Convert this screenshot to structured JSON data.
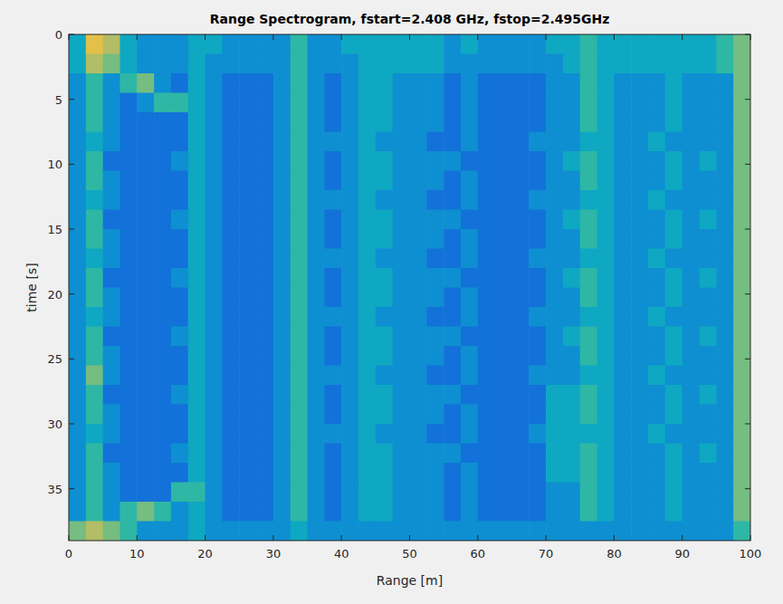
{
  "chart_data": {
    "type": "heatmap",
    "title": "Range Spectrogram, fstart=2.408 GHz, fstop=2.495GHz",
    "x_label": "Range [m]",
    "y_label": "time [s]",
    "xlim": [
      0,
      100
    ],
    "ylim": [
      0,
      39
    ],
    "xticks": [
      0,
      10,
      20,
      30,
      40,
      50,
      60,
      70,
      80,
      90,
      100
    ],
    "yticks": [
      0,
      5,
      10,
      15,
      20,
      25,
      30,
      35
    ],
    "zlim": [
      0,
      10
    ],
    "x_edges": [
      0,
      2.5,
      5,
      7.5,
      10,
      12.5,
      15,
      17.5,
      20,
      22.5,
      25,
      27.5,
      30,
      32.5,
      35,
      37.5,
      40,
      42.5,
      45,
      47.5,
      50,
      52.5,
      55,
      57.5,
      60,
      62.5,
      65,
      67.5,
      70,
      72.5,
      75,
      77.5,
      80,
      82.5,
      85,
      87.5,
      90,
      92.5,
      95,
      97.5,
      100
    ],
    "y_edges": [
      0,
      1.5,
      3,
      4.5,
      6,
      7.5,
      9,
      10.5,
      12,
      13.5,
      15,
      16.5,
      18,
      19.5,
      21,
      22.5,
      24,
      25.5,
      27,
      28.5,
      30,
      31.5,
      33,
      34.5,
      36,
      37.5,
      39
    ],
    "cells": [
      [
        4,
        8,
        7,
        4,
        3,
        3,
        3,
        4,
        4,
        3,
        3,
        3,
        3,
        5,
        3,
        3,
        4,
        4,
        4,
        4,
        4,
        4,
        3,
        4,
        3,
        3,
        3,
        3,
        4,
        4,
        5,
        4,
        4,
        4,
        4,
        4,
        4,
        4,
        5,
        6
      ],
      [
        4,
        7,
        6,
        4,
        3,
        3,
        3,
        4,
        3,
        3,
        3,
        3,
        3,
        5,
        3,
        3,
        3,
        4,
        4,
        4,
        4,
        4,
        3,
        3,
        3,
        3,
        3,
        3,
        3,
        4,
        5,
        4,
        4,
        4,
        4,
        4,
        4,
        4,
        5,
        6
      ],
      [
        3,
        5,
        3,
        5,
        6,
        3,
        2,
        4,
        3,
        2,
        2,
        2,
        3,
        5,
        3,
        2,
        3,
        4,
        4,
        3,
        3,
        3,
        2,
        3,
        2,
        2,
        2,
        2,
        3,
        3,
        5,
        4,
        3,
        3,
        3,
        4,
        3,
        3,
        3,
        6
      ],
      [
        3,
        5,
        3,
        2,
        3,
        5,
        5,
        4,
        3,
        2,
        2,
        2,
        3,
        5,
        3,
        2,
        3,
        4,
        4,
        3,
        3,
        3,
        2,
        3,
        2,
        2,
        2,
        2,
        3,
        3,
        5,
        4,
        3,
        3,
        3,
        4,
        3,
        3,
        3,
        6
      ],
      [
        3,
        5,
        3,
        2,
        2,
        2,
        2,
        4,
        3,
        2,
        2,
        2,
        3,
        5,
        3,
        2,
        3,
        4,
        4,
        3,
        3,
        3,
        2,
        3,
        2,
        2,
        2,
        2,
        3,
        3,
        5,
        4,
        3,
        3,
        3,
        4,
        3,
        3,
        3,
        6
      ],
      [
        3,
        4,
        3,
        2,
        2,
        2,
        2,
        4,
        3,
        2,
        2,
        2,
        3,
        5,
        3,
        3,
        3,
        4,
        3,
        3,
        3,
        2,
        2,
        3,
        2,
        2,
        2,
        3,
        3,
        3,
        4,
        4,
        3,
        3,
        4,
        3,
        3,
        3,
        3,
        6
      ],
      [
        3,
        5,
        2,
        2,
        2,
        2,
        3,
        4,
        3,
        2,
        2,
        2,
        3,
        5,
        3,
        2,
        3,
        4,
        4,
        3,
        3,
        3,
        3,
        2,
        2,
        2,
        2,
        2,
        3,
        4,
        5,
        4,
        3,
        3,
        3,
        4,
        3,
        4,
        3,
        6
      ],
      [
        3,
        5,
        3,
        2,
        2,
        2,
        2,
        4,
        3,
        2,
        2,
        2,
        3,
        5,
        3,
        2,
        3,
        4,
        4,
        3,
        3,
        3,
        2,
        3,
        2,
        2,
        2,
        2,
        3,
        3,
        5,
        4,
        3,
        3,
        3,
        4,
        3,
        3,
        3,
        6
      ],
      [
        3,
        4,
        3,
        2,
        2,
        2,
        2,
        4,
        3,
        2,
        2,
        2,
        3,
        5,
        3,
        3,
        3,
        4,
        3,
        3,
        3,
        2,
        2,
        3,
        2,
        2,
        2,
        3,
        3,
        3,
        4,
        4,
        3,
        3,
        4,
        3,
        3,
        3,
        3,
        6
      ],
      [
        3,
        5,
        2,
        2,
        2,
        2,
        3,
        4,
        3,
        2,
        2,
        2,
        3,
        5,
        3,
        2,
        3,
        4,
        4,
        3,
        3,
        3,
        3,
        2,
        2,
        2,
        2,
        2,
        3,
        4,
        5,
        4,
        3,
        3,
        3,
        4,
        3,
        4,
        3,
        6
      ],
      [
        3,
        5,
        3,
        2,
        2,
        2,
        2,
        4,
        3,
        2,
        2,
        2,
        3,
        5,
        3,
        2,
        3,
        4,
        4,
        3,
        3,
        3,
        2,
        3,
        2,
        2,
        2,
        2,
        3,
        3,
        5,
        4,
        3,
        3,
        3,
        4,
        3,
        3,
        3,
        6
      ],
      [
        3,
        4,
        3,
        2,
        2,
        2,
        2,
        4,
        3,
        2,
        2,
        2,
        3,
        5,
        3,
        3,
        3,
        4,
        3,
        3,
        3,
        2,
        2,
        3,
        2,
        2,
        2,
        3,
        3,
        3,
        4,
        4,
        3,
        3,
        4,
        3,
        3,
        3,
        3,
        6
      ],
      [
        3,
        5,
        2,
        2,
        2,
        2,
        3,
        4,
        3,
        2,
        2,
        2,
        3,
        5,
        3,
        2,
        3,
        4,
        4,
        3,
        3,
        3,
        3,
        2,
        2,
        2,
        2,
        2,
        3,
        4,
        5,
        4,
        3,
        3,
        3,
        4,
        3,
        4,
        3,
        6
      ],
      [
        3,
        5,
        3,
        2,
        2,
        2,
        2,
        4,
        3,
        2,
        2,
        2,
        3,
        5,
        3,
        2,
        3,
        4,
        4,
        3,
        3,
        3,
        2,
        3,
        2,
        2,
        2,
        2,
        3,
        3,
        5,
        4,
        3,
        3,
        3,
        4,
        3,
        3,
        3,
        6
      ],
      [
        3,
        4,
        3,
        2,
        2,
        2,
        2,
        4,
        3,
        2,
        2,
        2,
        3,
        5,
        3,
        3,
        3,
        4,
        3,
        3,
        3,
        2,
        2,
        3,
        2,
        2,
        2,
        3,
        3,
        3,
        4,
        4,
        3,
        3,
        4,
        3,
        3,
        3,
        3,
        6
      ],
      [
        3,
        5,
        2,
        2,
        2,
        2,
        3,
        4,
        3,
        2,
        2,
        2,
        3,
        5,
        3,
        2,
        3,
        4,
        4,
        3,
        3,
        3,
        3,
        2,
        2,
        2,
        2,
        2,
        3,
        4,
        5,
        4,
        3,
        3,
        3,
        4,
        3,
        4,
        3,
        6
      ],
      [
        3,
        5,
        3,
        2,
        2,
        2,
        2,
        4,
        3,
        2,
        2,
        2,
        3,
        5,
        3,
        2,
        3,
        4,
        4,
        3,
        3,
        3,
        2,
        3,
        2,
        2,
        2,
        2,
        3,
        3,
        5,
        4,
        3,
        3,
        3,
        4,
        3,
        3,
        3,
        6
      ],
      [
        3,
        6,
        3,
        2,
        2,
        2,
        2,
        4,
        3,
        2,
        2,
        2,
        3,
        5,
        3,
        3,
        3,
        4,
        3,
        3,
        3,
        2,
        2,
        3,
        2,
        2,
        2,
        3,
        3,
        3,
        4,
        4,
        3,
        3,
        4,
        3,
        3,
        3,
        3,
        6
      ],
      [
        3,
        5,
        2,
        2,
        2,
        2,
        3,
        4,
        3,
        2,
        2,
        2,
        3,
        5,
        3,
        2,
        3,
        4,
        4,
        3,
        3,
        3,
        3,
        2,
        2,
        2,
        2,
        2,
        4,
        4,
        5,
        4,
        3,
        3,
        3,
        4,
        3,
        4,
        3,
        6
      ],
      [
        3,
        5,
        3,
        2,
        2,
        2,
        2,
        4,
        3,
        2,
        2,
        2,
        3,
        5,
        3,
        2,
        3,
        4,
        4,
        3,
        3,
        3,
        2,
        3,
        2,
        2,
        2,
        2,
        4,
        4,
        5,
        4,
        3,
        3,
        3,
        4,
        3,
        3,
        3,
        6
      ],
      [
        3,
        4,
        3,
        2,
        2,
        2,
        2,
        4,
        3,
        2,
        2,
        2,
        3,
        5,
        3,
        3,
        3,
        4,
        3,
        3,
        3,
        2,
        2,
        3,
        2,
        2,
        2,
        3,
        4,
        4,
        4,
        4,
        3,
        3,
        4,
        3,
        3,
        3,
        3,
        6
      ],
      [
        3,
        5,
        2,
        2,
        2,
        2,
        3,
        4,
        3,
        2,
        2,
        2,
        3,
        5,
        3,
        2,
        3,
        4,
        4,
        3,
        3,
        3,
        3,
        2,
        2,
        2,
        2,
        2,
        4,
        4,
        5,
        4,
        3,
        3,
        3,
        4,
        3,
        4,
        3,
        6
      ],
      [
        3,
        5,
        3,
        2,
        2,
        2,
        2,
        4,
        3,
        2,
        2,
        2,
        3,
        5,
        3,
        2,
        3,
        4,
        4,
        3,
        3,
        3,
        2,
        3,
        2,
        2,
        2,
        2,
        4,
        4,
        5,
        4,
        3,
        3,
        3,
        4,
        3,
        3,
        3,
        6
      ],
      [
        3,
        5,
        3,
        2,
        2,
        2,
        5,
        5,
        3,
        2,
        2,
        2,
        3,
        5,
        3,
        2,
        3,
        4,
        4,
        3,
        3,
        3,
        2,
        3,
        2,
        2,
        2,
        2,
        3,
        3,
        5,
        4,
        3,
        3,
        3,
        4,
        3,
        3,
        3,
        6
      ],
      [
        3,
        5,
        3,
        5,
        6,
        5,
        3,
        4,
        3,
        2,
        2,
        2,
        3,
        5,
        3,
        2,
        3,
        4,
        4,
        3,
        3,
        3,
        2,
        3,
        2,
        2,
        2,
        2,
        3,
        3,
        5,
        4,
        3,
        3,
        3,
        4,
        3,
        3,
        3,
        6
      ],
      [
        6,
        7,
        6,
        5,
        3,
        3,
        3,
        4,
        3,
        3,
        3,
        3,
        3,
        4,
        3,
        3,
        3,
        3,
        3,
        3,
        3,
        3,
        3,
        3,
        3,
        3,
        3,
        3,
        3,
        3,
        3,
        3,
        3,
        3,
        3,
        3,
        3,
        3,
        3,
        5
      ]
    ]
  }
}
